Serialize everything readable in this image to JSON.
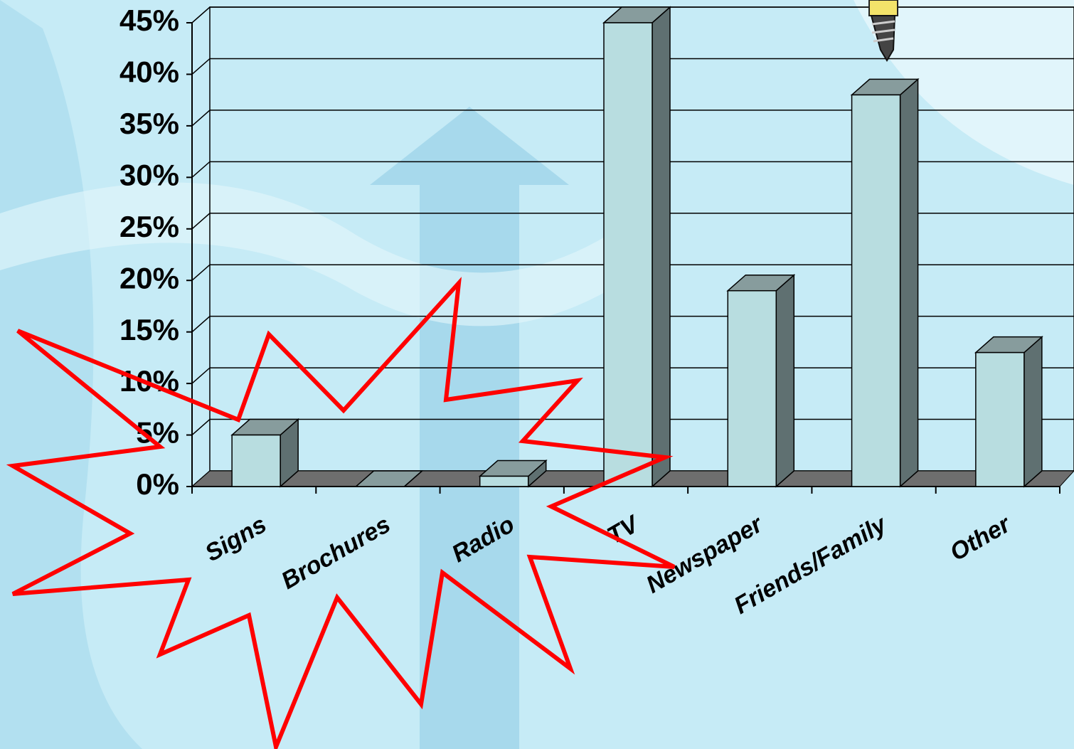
{
  "chart_data": {
    "type": "bar3d",
    "categories": [
      "Signs",
      "Brochures",
      "Radio",
      "TV",
      "Newspaper",
      "Friends/Family",
      "Other"
    ],
    "values": [
      5,
      0,
      1,
      45,
      19,
      38,
      13
    ],
    "color": "#b8dde0",
    "ylim": [
      0,
      45
    ],
    "yticks": [
      {
        "value": 0,
        "label": "0%"
      },
      {
        "value": 5,
        "label": "5%"
      },
      {
        "value": 10,
        "label": "10%"
      },
      {
        "value": 15,
        "label": "15%"
      },
      {
        "value": 20,
        "label": "20%"
      },
      {
        "value": 25,
        "label": "25%"
      },
      {
        "value": 30,
        "label": "30%"
      },
      {
        "value": 35,
        "label": "35%"
      },
      {
        "value": 40,
        "label": "40%"
      },
      {
        "value": 45,
        "label": "45%"
      }
    ],
    "grid": true
  }
}
